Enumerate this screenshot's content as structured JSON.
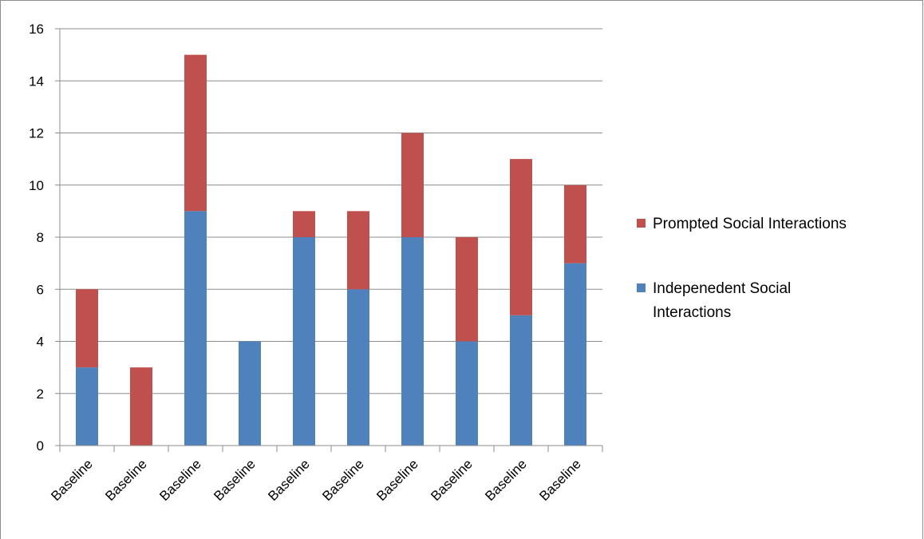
{
  "chart_data": {
    "type": "bar",
    "stacked": true,
    "categories": [
      "Baseline",
      "Baseline",
      "Baseline",
      "Baseline",
      "Baseline",
      "Baseline",
      "Baseline",
      "Baseline",
      "Baseline",
      "Baseline"
    ],
    "series": [
      {
        "name": "Indepenedent Social Interactions",
        "color": "#4f81bd",
        "values": [
          3,
          0,
          9,
          4,
          8,
          6,
          8,
          4,
          5,
          7
        ]
      },
      {
        "name": "Prompted Social Interactions",
        "color": "#c0504d",
        "values": [
          3,
          3,
          6,
          0,
          1,
          3,
          4,
          4,
          6,
          3
        ]
      }
    ],
    "legend": {
      "placement": "right",
      "entries": [
        {
          "lines": [
            "Prompted Social Interactions"
          ],
          "color": "#c0504d"
        },
        {
          "lines": [
            "Indepenedent Social",
            "Interactions"
          ],
          "color": "#4f81bd"
        }
      ]
    },
    "ylim": [
      0,
      16
    ],
    "yticks": [
      0,
      2,
      4,
      6,
      8,
      10,
      12,
      14,
      16
    ],
    "grid": true,
    "title": "",
    "xlabel": "",
    "ylabel": ""
  }
}
